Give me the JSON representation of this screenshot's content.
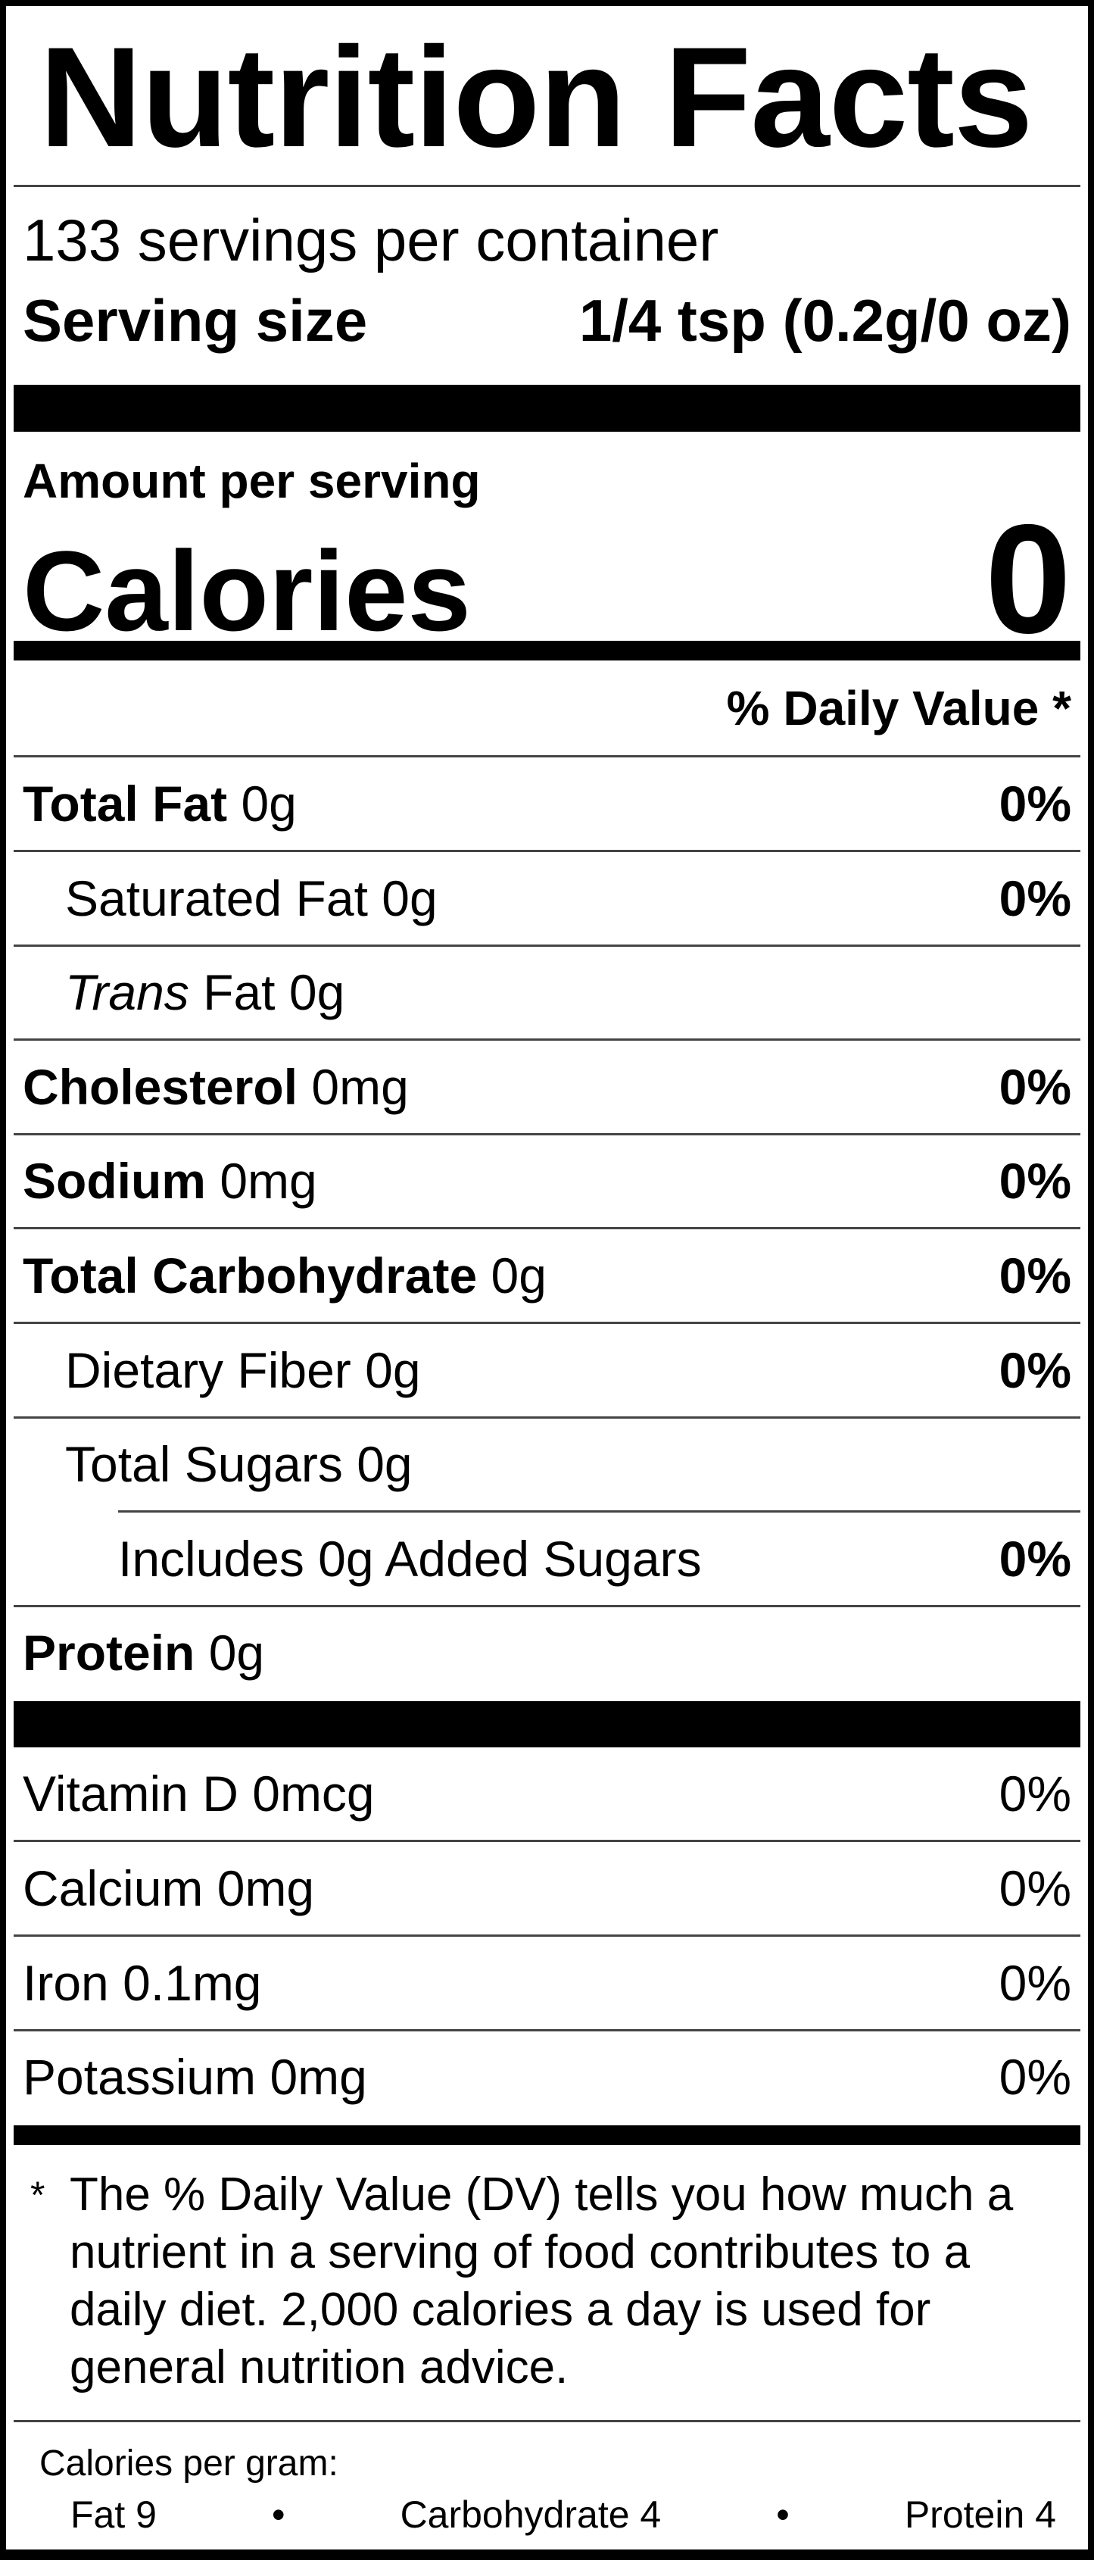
{
  "title": "Nutrition Facts",
  "servings_per_container": "133 servings per container",
  "serving_size": {
    "label": "Serving size",
    "value": "1/4 tsp (0.2g/0 oz)"
  },
  "amount_per_serving": "Amount per serving",
  "calories": {
    "label": "Calories",
    "value": "0"
  },
  "daily_value_header": "% Daily Value *",
  "nutrients": [
    {
      "name": "Total Fat",
      "amount": "0g",
      "dv": "0%",
      "bold": true,
      "indent": 0
    },
    {
      "name": "Saturated Fat",
      "amount": "0g",
      "dv": "0%",
      "bold": false,
      "indent": 1
    },
    {
      "name": "Trans",
      "name_suffix": "Fat",
      "amount": "0g",
      "dv": "",
      "bold": false,
      "indent": 1
    },
    {
      "name": "Cholesterol",
      "amount": "0mg",
      "dv": "0%",
      "bold": true,
      "indent": 0
    },
    {
      "name": "Sodium",
      "amount": "0mg",
      "dv": "0%",
      "bold": true,
      "indent": 0
    },
    {
      "name": "Total Carbohydrate",
      "amount": "0g",
      "dv": "0%",
      "bold": true,
      "indent": 0
    },
    {
      "name": "Dietary Fiber",
      "amount": "0g",
      "dv": "0%",
      "bold": false,
      "indent": 1
    },
    {
      "name": "Total Sugars",
      "amount": "0g",
      "dv": "",
      "bold": false,
      "indent": 1
    },
    {
      "name": "Includes 0g Added Sugars",
      "amount": "",
      "dv": "0%",
      "bold": false,
      "indent": 2
    },
    {
      "name": "Protein",
      "amount": "0g",
      "dv": "",
      "bold": true,
      "indent": 0
    }
  ],
  "vitamins": [
    {
      "name": "Vitamin D",
      "amount": "0mcg",
      "dv": "0%"
    },
    {
      "name": "Calcium",
      "amount": "0mg",
      "dv": "0%"
    },
    {
      "name": "Iron",
      "amount": "0.1mg",
      "dv": "0%"
    },
    {
      "name": "Potassium",
      "amount": "0mg",
      "dv": "0%"
    }
  ],
  "footnote": {
    "asterisk": "*",
    "text": "The % Daily Value (DV) tells you how much a nutrient in a serving of food contributes to a daily diet. 2,000 calories a day is used for general nutrition advice."
  },
  "calories_per_gram": {
    "label": "Calories per gram:",
    "fat": "Fat 9",
    "bullet": "•",
    "carbohydrate": "Carbohydrate 4",
    "protein": "Protein 4"
  }
}
